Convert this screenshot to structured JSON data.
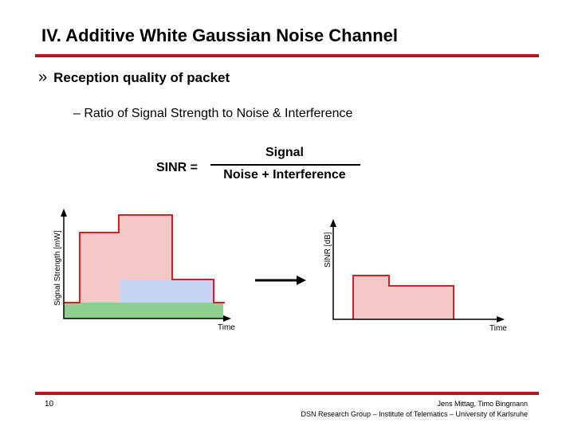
{
  "slide": {
    "title": "IV. Additive White Gaussian Noise Channel",
    "bullet_marker": "»",
    "bullet1": "Reception quality of packet",
    "bullet2": "– Ratio of Signal Strength to Noise & Interference",
    "formula": {
      "lhs": "SINR =",
      "numerator": "Signal",
      "denominator": "Noise + Interference"
    },
    "left_chart": {
      "ylabel": "Signal Strength [mW]",
      "xlabel": "Time"
    },
    "right_chart": {
      "ylabel": "SINR [dB]",
      "xlabel": "Time"
    },
    "page_number": "10",
    "footer_line1": "Jens Mittag, Timo Bingmann",
    "footer_line2": "DSN Research Group – Institute of Telematics – University of Karlsruhe"
  },
  "colors": {
    "rule": "#a31f1f",
    "signal_fill": "#f8c8c8",
    "signal_stroke": "#d42020",
    "interference_fill": "#c8d4f4",
    "noise_fill": "#8fcf8f"
  }
}
